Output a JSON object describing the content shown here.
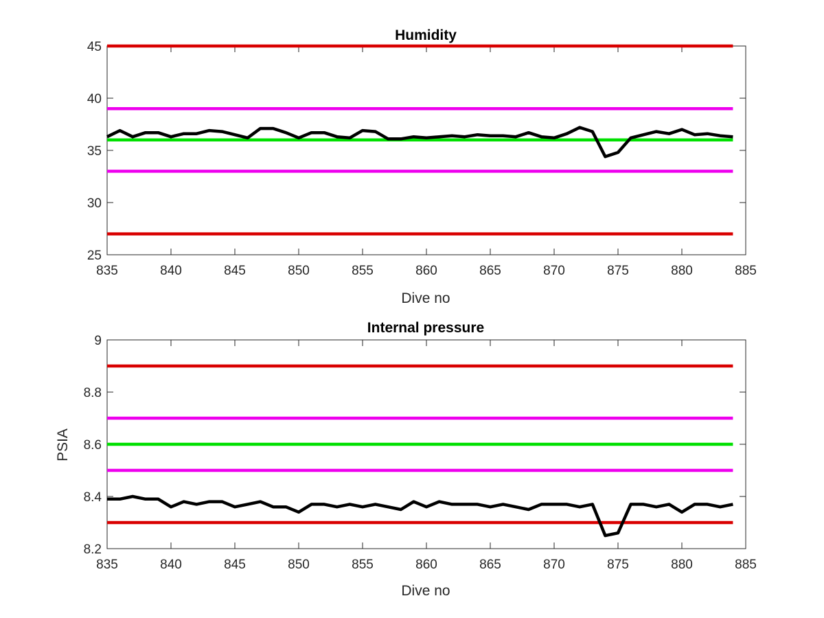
{
  "chart_data": [
    {
      "type": "line",
      "title": "Humidity",
      "xlabel": "Dive no",
      "ylabel": "",
      "xlim": [
        835,
        885
      ],
      "ylim": [
        25,
        45
      ],
      "xticks": [
        "835",
        "840",
        "845",
        "850",
        "855",
        "860",
        "865",
        "870",
        "875",
        "880",
        "885"
      ],
      "yticks": [
        "25",
        "30",
        "35",
        "40",
        "45"
      ],
      "grid": false,
      "thresholds": [
        {
          "value": 45,
          "color": "#d90000"
        },
        {
          "value": 39,
          "color": "#ee00ee"
        },
        {
          "value": 36,
          "color": "#00e000"
        },
        {
          "value": 33,
          "color": "#ee00ee"
        },
        {
          "value": 27,
          "color": "#d90000"
        }
      ],
      "series": [
        {
          "color": "#000000",
          "x": [
            835,
            836,
            837,
            838,
            839,
            840,
            841,
            842,
            843,
            844,
            845,
            846,
            847,
            848,
            849,
            850,
            851,
            852,
            853,
            854,
            855,
            856,
            857,
            858,
            859,
            860,
            861,
            862,
            863,
            864,
            865,
            866,
            867,
            868,
            869,
            870,
            871,
            872,
            873,
            874,
            875,
            876,
            877,
            878,
            879,
            880,
            881,
            882,
            883,
            884
          ],
          "values": [
            36.3,
            36.9,
            36.3,
            36.7,
            36.7,
            36.3,
            36.6,
            36.6,
            36.9,
            36.8,
            36.5,
            36.2,
            37.1,
            37.1,
            36.7,
            36.2,
            36.7,
            36.7,
            36.3,
            36.2,
            36.9,
            36.8,
            36.1,
            36.1,
            36.3,
            36.2,
            36.3,
            36.4,
            36.3,
            36.5,
            36.4,
            36.4,
            36.3,
            36.7,
            36.3,
            36.2,
            36.6,
            37.2,
            36.8,
            34.4,
            34.8,
            36.2,
            36.5,
            36.8,
            36.6,
            37.0,
            36.5,
            36.6,
            36.4,
            36.3
          ]
        }
      ]
    },
    {
      "type": "line",
      "title": "Internal pressure",
      "xlabel": "Dive no",
      "ylabel": "PSIA",
      "xlim": [
        835,
        885
      ],
      "ylim": [
        8.2,
        9.0
      ],
      "xticks": [
        "835",
        "840",
        "845",
        "850",
        "855",
        "860",
        "865",
        "870",
        "875",
        "880",
        "885"
      ],
      "yticks": [
        "8.2",
        "8.4",
        "8.6",
        "8.8",
        "9"
      ],
      "grid": false,
      "thresholds": [
        {
          "value": 8.9,
          "color": "#d90000"
        },
        {
          "value": 8.7,
          "color": "#ee00ee"
        },
        {
          "value": 8.6,
          "color": "#00e000"
        },
        {
          "value": 8.5,
          "color": "#ee00ee"
        },
        {
          "value": 8.3,
          "color": "#d90000"
        }
      ],
      "series": [
        {
          "color": "#000000",
          "x": [
            835,
            836,
            837,
            838,
            839,
            840,
            841,
            842,
            843,
            844,
            845,
            846,
            847,
            848,
            849,
            850,
            851,
            852,
            853,
            854,
            855,
            856,
            857,
            858,
            859,
            860,
            861,
            862,
            863,
            864,
            865,
            866,
            867,
            868,
            869,
            870,
            871,
            872,
            873,
            874,
            875,
            876,
            877,
            878,
            879,
            880,
            881,
            882,
            883,
            884
          ],
          "values": [
            8.39,
            8.39,
            8.4,
            8.39,
            8.39,
            8.36,
            8.38,
            8.37,
            8.38,
            8.38,
            8.36,
            8.37,
            8.38,
            8.36,
            8.36,
            8.34,
            8.37,
            8.37,
            8.36,
            8.37,
            8.36,
            8.37,
            8.36,
            8.35,
            8.38,
            8.36,
            8.38,
            8.37,
            8.37,
            8.37,
            8.36,
            8.37,
            8.36,
            8.35,
            8.37,
            8.37,
            8.37,
            8.36,
            8.37,
            8.25,
            8.26,
            8.37,
            8.37,
            8.36,
            8.37,
            8.34,
            8.37,
            8.37,
            8.36,
            8.37
          ]
        }
      ]
    }
  ]
}
